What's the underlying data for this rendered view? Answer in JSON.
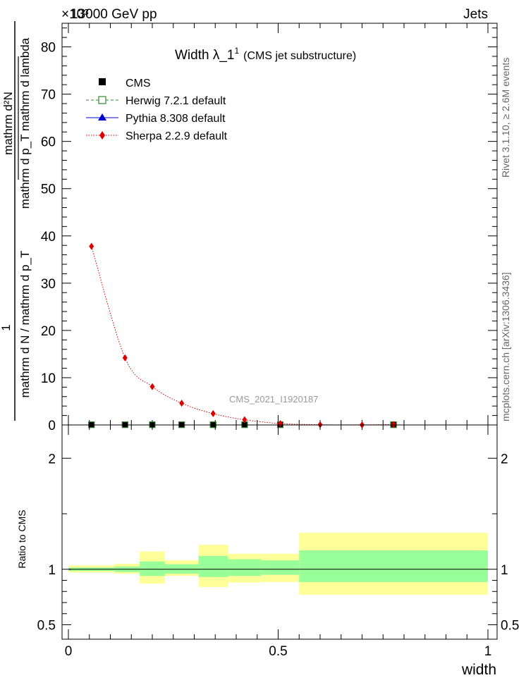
{
  "header": {
    "energy_label": "13000 GeV pp",
    "category_label": "Jets",
    "exponent_label": "×10³"
  },
  "side_text": {
    "rivet": "Rivet 3.1.10, ≥ 2.6M events",
    "mcplots": "mcplots.cern.ch [arXiv:1306.3436]"
  },
  "watermark": "CMS_2021_I1920187",
  "chart_data": [
    {
      "type": "line",
      "title": "Width λ_1¹",
      "title_main": "Width λ_1",
      "title_sup": "1",
      "subtitle": "(CMS jet substructure)",
      "ylabel_parts": {
        "numerator": "1",
        "denominator": "mathrm d N / mathrm d p_T",
        "fraction_numerator": "mathrm d²N",
        "fraction_denominator": "mathrm d p_T mathrm d lambda"
      },
      "ylim": [
        0,
        85
      ],
      "y_scale_note": "×10³",
      "yticks": [
        0,
        10,
        20,
        30,
        40,
        50,
        60,
        70,
        80
      ],
      "xlim": [
        -0.02,
        1.02
      ],
      "legend_position": "top-left",
      "legend": [
        {
          "name": "CMS",
          "color": "#000000",
          "marker": "square-filled",
          "line": "none"
        },
        {
          "name": "Herwig 7.2.1 default",
          "color": "#2e8b2e",
          "marker": "square-open",
          "line": "dashed"
        },
        {
          "name": "Pythia 8.308 default",
          "color": "#0000cc",
          "marker": "triangle",
          "line": "solid"
        },
        {
          "name": "Sherpa 2.2.9 default",
          "color": "#dd0000",
          "marker": "diamond",
          "line": "dotted"
        }
      ],
      "series": [
        {
          "name": "Sherpa 2.2.9 default",
          "x": [
            0.055,
            0.135,
            0.2,
            0.27,
            0.345,
            0.42,
            0.505,
            0.6,
            0.7,
            0.775
          ],
          "values": [
            37.8,
            14.2,
            8.1,
            4.6,
            2.4,
            1.1,
            0.3,
            0.05,
            0.02,
            0.1
          ]
        },
        {
          "name": "CMS",
          "x": [
            0.055,
            0.135,
            0.2,
            0.27,
            0.345,
            0.42,
            0.505,
            0.775
          ],
          "values": [
            0.05,
            0.05,
            0.05,
            0.05,
            0.05,
            0.05,
            0.05,
            0.05
          ]
        }
      ]
    },
    {
      "type": "area",
      "ylabel": "Ratio to CMS",
      "xlabel": "width",
      "ylim": [
        0.37,
        2.3
      ],
      "yticks": [
        0.5,
        1,
        2
      ],
      "ytick_labels": [
        "0.5",
        "1",
        "2"
      ],
      "xticks": [
        0,
        0.5,
        1
      ],
      "xtick_labels": [
        "0",
        "0.5",
        "1"
      ],
      "reference_line": 1,
      "bands": [
        {
          "x0": 0.0,
          "x1": 0.11,
          "inner": [
            0.985,
            1.015
          ],
          "outer": [
            0.97,
            1.035
          ]
        },
        {
          "x0": 0.11,
          "x1": 0.17,
          "inner": [
            0.975,
            1.025
          ],
          "outer": [
            0.96,
            1.05
          ]
        },
        {
          "x0": 0.17,
          "x1": 0.23,
          "inner": [
            0.94,
            1.07
          ],
          "outer": [
            0.87,
            1.16
          ]
        },
        {
          "x0": 0.23,
          "x1": 0.31,
          "inner": [
            0.96,
            1.045
          ],
          "outer": [
            0.94,
            1.08
          ]
        },
        {
          "x0": 0.31,
          "x1": 0.38,
          "inner": [
            0.93,
            1.12
          ],
          "outer": [
            0.84,
            1.22
          ]
        },
        {
          "x0": 0.38,
          "x1": 0.46,
          "inner": [
            0.94,
            1.09
          ],
          "outer": [
            0.88,
            1.14
          ]
        },
        {
          "x0": 0.46,
          "x1": 0.55,
          "inner": [
            0.95,
            1.08
          ],
          "outer": [
            0.885,
            1.14
          ]
        },
        {
          "x0": 0.55,
          "x1": 1.0,
          "inner": [
            0.885,
            1.17
          ],
          "outer": [
            0.77,
            1.33
          ]
        }
      ],
      "colors": {
        "inner": "#99ff99",
        "outer": "#ffff99",
        "line": "#000000"
      }
    }
  ]
}
